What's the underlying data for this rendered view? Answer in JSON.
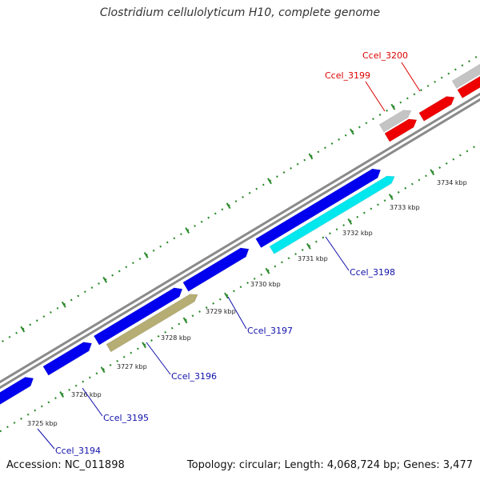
{
  "title": "Clostridium cellulolyticum H10, complete genome",
  "footer": {
    "accession": "Accession: NC_011898",
    "stats": "Topology: circular; Length: 4,068,724 bp; Genes: 3,477"
  },
  "colors": {
    "backbone": "#8a8a8a",
    "tick": "#2e8b2e",
    "gene_blue": "#0000ee",
    "gene_cyan": "#00e8ee",
    "gene_olive": "#b5ad73",
    "gene_red": "#ee0000",
    "gene_grey": "#c4c4c4",
    "label_blue": "#1010aa",
    "label_red": "#dd0000"
  },
  "scale_labels": [
    "3725 kbp",
    "3726 kbp",
    "3727 kbp",
    "3728 kbp",
    "3729 kbp",
    "3730 kbp",
    "3731 kbp",
    "3732 kbp",
    "3733 kbp",
    "3734 kbp"
  ],
  "gene_labels": [
    {
      "id": "g3194",
      "text": "Ccel_3194",
      "color": "blue"
    },
    {
      "id": "g3195",
      "text": "Ccel_3195",
      "color": "blue"
    },
    {
      "id": "g3196",
      "text": "Ccel_3196",
      "color": "blue"
    },
    {
      "id": "g3197",
      "text": "Ccel_3197",
      "color": "blue"
    },
    {
      "id": "g3198",
      "text": "Ccel_3198",
      "color": "blue"
    },
    {
      "id": "g3199",
      "text": "Ccel_3199",
      "color": "red"
    },
    {
      "id": "g3200",
      "text": "Ccel_3200",
      "color": "red"
    }
  ]
}
